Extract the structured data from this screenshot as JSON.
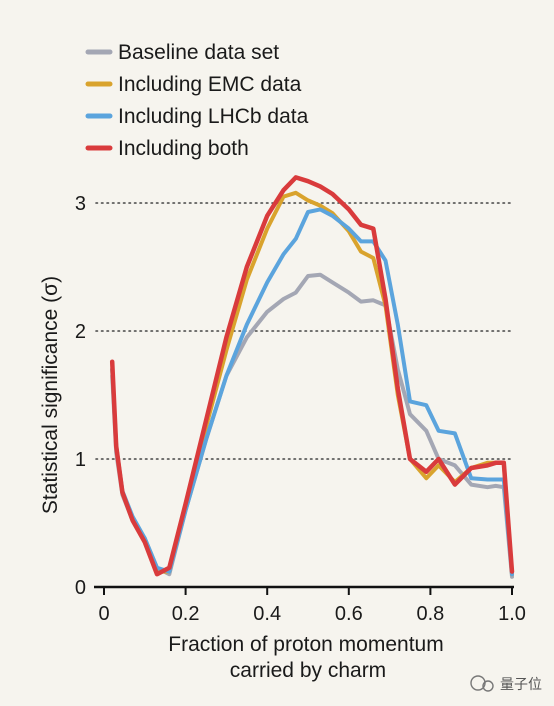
{
  "chart_data": {
    "type": "line",
    "xlabel": "Fraction of proton momentum carried by charm",
    "xlabel_lines": [
      "Fraction of proton momentum",
      "carried by charm"
    ],
    "ylabel": "Statistical significance (σ)",
    "xlim": [
      0,
      1.0
    ],
    "ylim": [
      0,
      3.3
    ],
    "x_ticks": [
      0,
      0.2,
      0.4,
      0.6,
      0.8,
      1.0
    ],
    "x_tick_labels": [
      "0",
      "0.2",
      "0.4",
      "0.6",
      "0.8",
      "1.0"
    ],
    "y_ticks": [
      0,
      1,
      2,
      3
    ],
    "y_tick_labels": [
      "0",
      "1",
      "2",
      "3"
    ],
    "grid": "dotted horizontal at 1, 2, 3",
    "legend_position": "top-left",
    "series": [
      {
        "name": "Baseline data set",
        "color": "#a4a7b4",
        "points": [
          [
            0.02,
            1.65
          ],
          [
            0.03,
            1.05
          ],
          [
            0.045,
            0.72
          ],
          [
            0.07,
            0.52
          ],
          [
            0.1,
            0.38
          ],
          [
            0.13,
            0.15
          ],
          [
            0.16,
            0.1
          ],
          [
            0.2,
            0.6
          ],
          [
            0.25,
            1.15
          ],
          [
            0.3,
            1.65
          ],
          [
            0.35,
            1.95
          ],
          [
            0.4,
            2.15
          ],
          [
            0.44,
            2.25
          ],
          [
            0.47,
            2.3
          ],
          [
            0.5,
            2.43
          ],
          [
            0.53,
            2.44
          ],
          [
            0.56,
            2.38
          ],
          [
            0.6,
            2.3
          ],
          [
            0.63,
            2.23
          ],
          [
            0.66,
            2.24
          ],
          [
            0.69,
            2.2
          ],
          [
            0.72,
            1.7
          ],
          [
            0.75,
            1.35
          ],
          [
            0.79,
            1.22
          ],
          [
            0.82,
            1.0
          ],
          [
            0.86,
            0.95
          ],
          [
            0.9,
            0.8
          ],
          [
            0.94,
            0.78
          ],
          [
            0.96,
            0.79
          ],
          [
            0.98,
            0.78
          ],
          [
            1.0,
            0.08
          ]
        ]
      },
      {
        "name": "Including EMC data",
        "color": "#d9a32d",
        "points": [
          [
            0.02,
            1.7
          ],
          [
            0.03,
            1.1
          ],
          [
            0.045,
            0.74
          ],
          [
            0.07,
            0.52
          ],
          [
            0.1,
            0.35
          ],
          [
            0.13,
            0.12
          ],
          [
            0.16,
            0.12
          ],
          [
            0.2,
            0.65
          ],
          [
            0.25,
            1.25
          ],
          [
            0.3,
            1.85
          ],
          [
            0.35,
            2.4
          ],
          [
            0.4,
            2.8
          ],
          [
            0.44,
            3.05
          ],
          [
            0.47,
            3.08
          ],
          [
            0.5,
            3.02
          ],
          [
            0.53,
            2.98
          ],
          [
            0.56,
            2.92
          ],
          [
            0.6,
            2.78
          ],
          [
            0.63,
            2.62
          ],
          [
            0.66,
            2.57
          ],
          [
            0.69,
            2.2
          ],
          [
            0.72,
            1.5
          ],
          [
            0.75,
            1.0
          ],
          [
            0.79,
            0.85
          ],
          [
            0.82,
            0.95
          ],
          [
            0.86,
            0.82
          ],
          [
            0.9,
            0.93
          ],
          [
            0.94,
            0.97
          ],
          [
            0.96,
            0.97
          ],
          [
            0.98,
            0.97
          ],
          [
            1.0,
            0.1
          ]
        ]
      },
      {
        "name": "Including LHCb data",
        "color": "#5ba4dd",
        "points": [
          [
            0.02,
            1.7
          ],
          [
            0.03,
            1.1
          ],
          [
            0.045,
            0.75
          ],
          [
            0.07,
            0.55
          ],
          [
            0.1,
            0.38
          ],
          [
            0.13,
            0.15
          ],
          [
            0.16,
            0.12
          ],
          [
            0.2,
            0.6
          ],
          [
            0.25,
            1.15
          ],
          [
            0.3,
            1.65
          ],
          [
            0.35,
            2.05
          ],
          [
            0.4,
            2.38
          ],
          [
            0.44,
            2.6
          ],
          [
            0.47,
            2.72
          ],
          [
            0.5,
            2.93
          ],
          [
            0.53,
            2.95
          ],
          [
            0.56,
            2.9
          ],
          [
            0.6,
            2.8
          ],
          [
            0.63,
            2.7
          ],
          [
            0.66,
            2.7
          ],
          [
            0.69,
            2.55
          ],
          [
            0.72,
            2.05
          ],
          [
            0.75,
            1.45
          ],
          [
            0.79,
            1.42
          ],
          [
            0.82,
            1.22
          ],
          [
            0.86,
            1.2
          ],
          [
            0.9,
            0.85
          ],
          [
            0.94,
            0.84
          ],
          [
            0.96,
            0.84
          ],
          [
            0.98,
            0.84
          ],
          [
            1.0,
            0.1
          ]
        ]
      },
      {
        "name": "Including both",
        "color": "#d93b3c",
        "points": [
          [
            0.02,
            1.76
          ],
          [
            0.03,
            1.1
          ],
          [
            0.045,
            0.74
          ],
          [
            0.07,
            0.52
          ],
          [
            0.1,
            0.35
          ],
          [
            0.13,
            0.1
          ],
          [
            0.16,
            0.15
          ],
          [
            0.2,
            0.65
          ],
          [
            0.25,
            1.3
          ],
          [
            0.3,
            1.95
          ],
          [
            0.35,
            2.5
          ],
          [
            0.4,
            2.9
          ],
          [
            0.44,
            3.1
          ],
          [
            0.47,
            3.2
          ],
          [
            0.5,
            3.17
          ],
          [
            0.53,
            3.13
          ],
          [
            0.56,
            3.07
          ],
          [
            0.6,
            2.95
          ],
          [
            0.63,
            2.83
          ],
          [
            0.66,
            2.8
          ],
          [
            0.69,
            2.25
          ],
          [
            0.72,
            1.55
          ],
          [
            0.75,
            1.0
          ],
          [
            0.79,
            0.9
          ],
          [
            0.82,
            1.0
          ],
          [
            0.86,
            0.8
          ],
          [
            0.9,
            0.93
          ],
          [
            0.94,
            0.95
          ],
          [
            0.96,
            0.97
          ],
          [
            0.98,
            0.97
          ],
          [
            1.0,
            0.12
          ]
        ]
      }
    ]
  },
  "watermark": "量子位"
}
